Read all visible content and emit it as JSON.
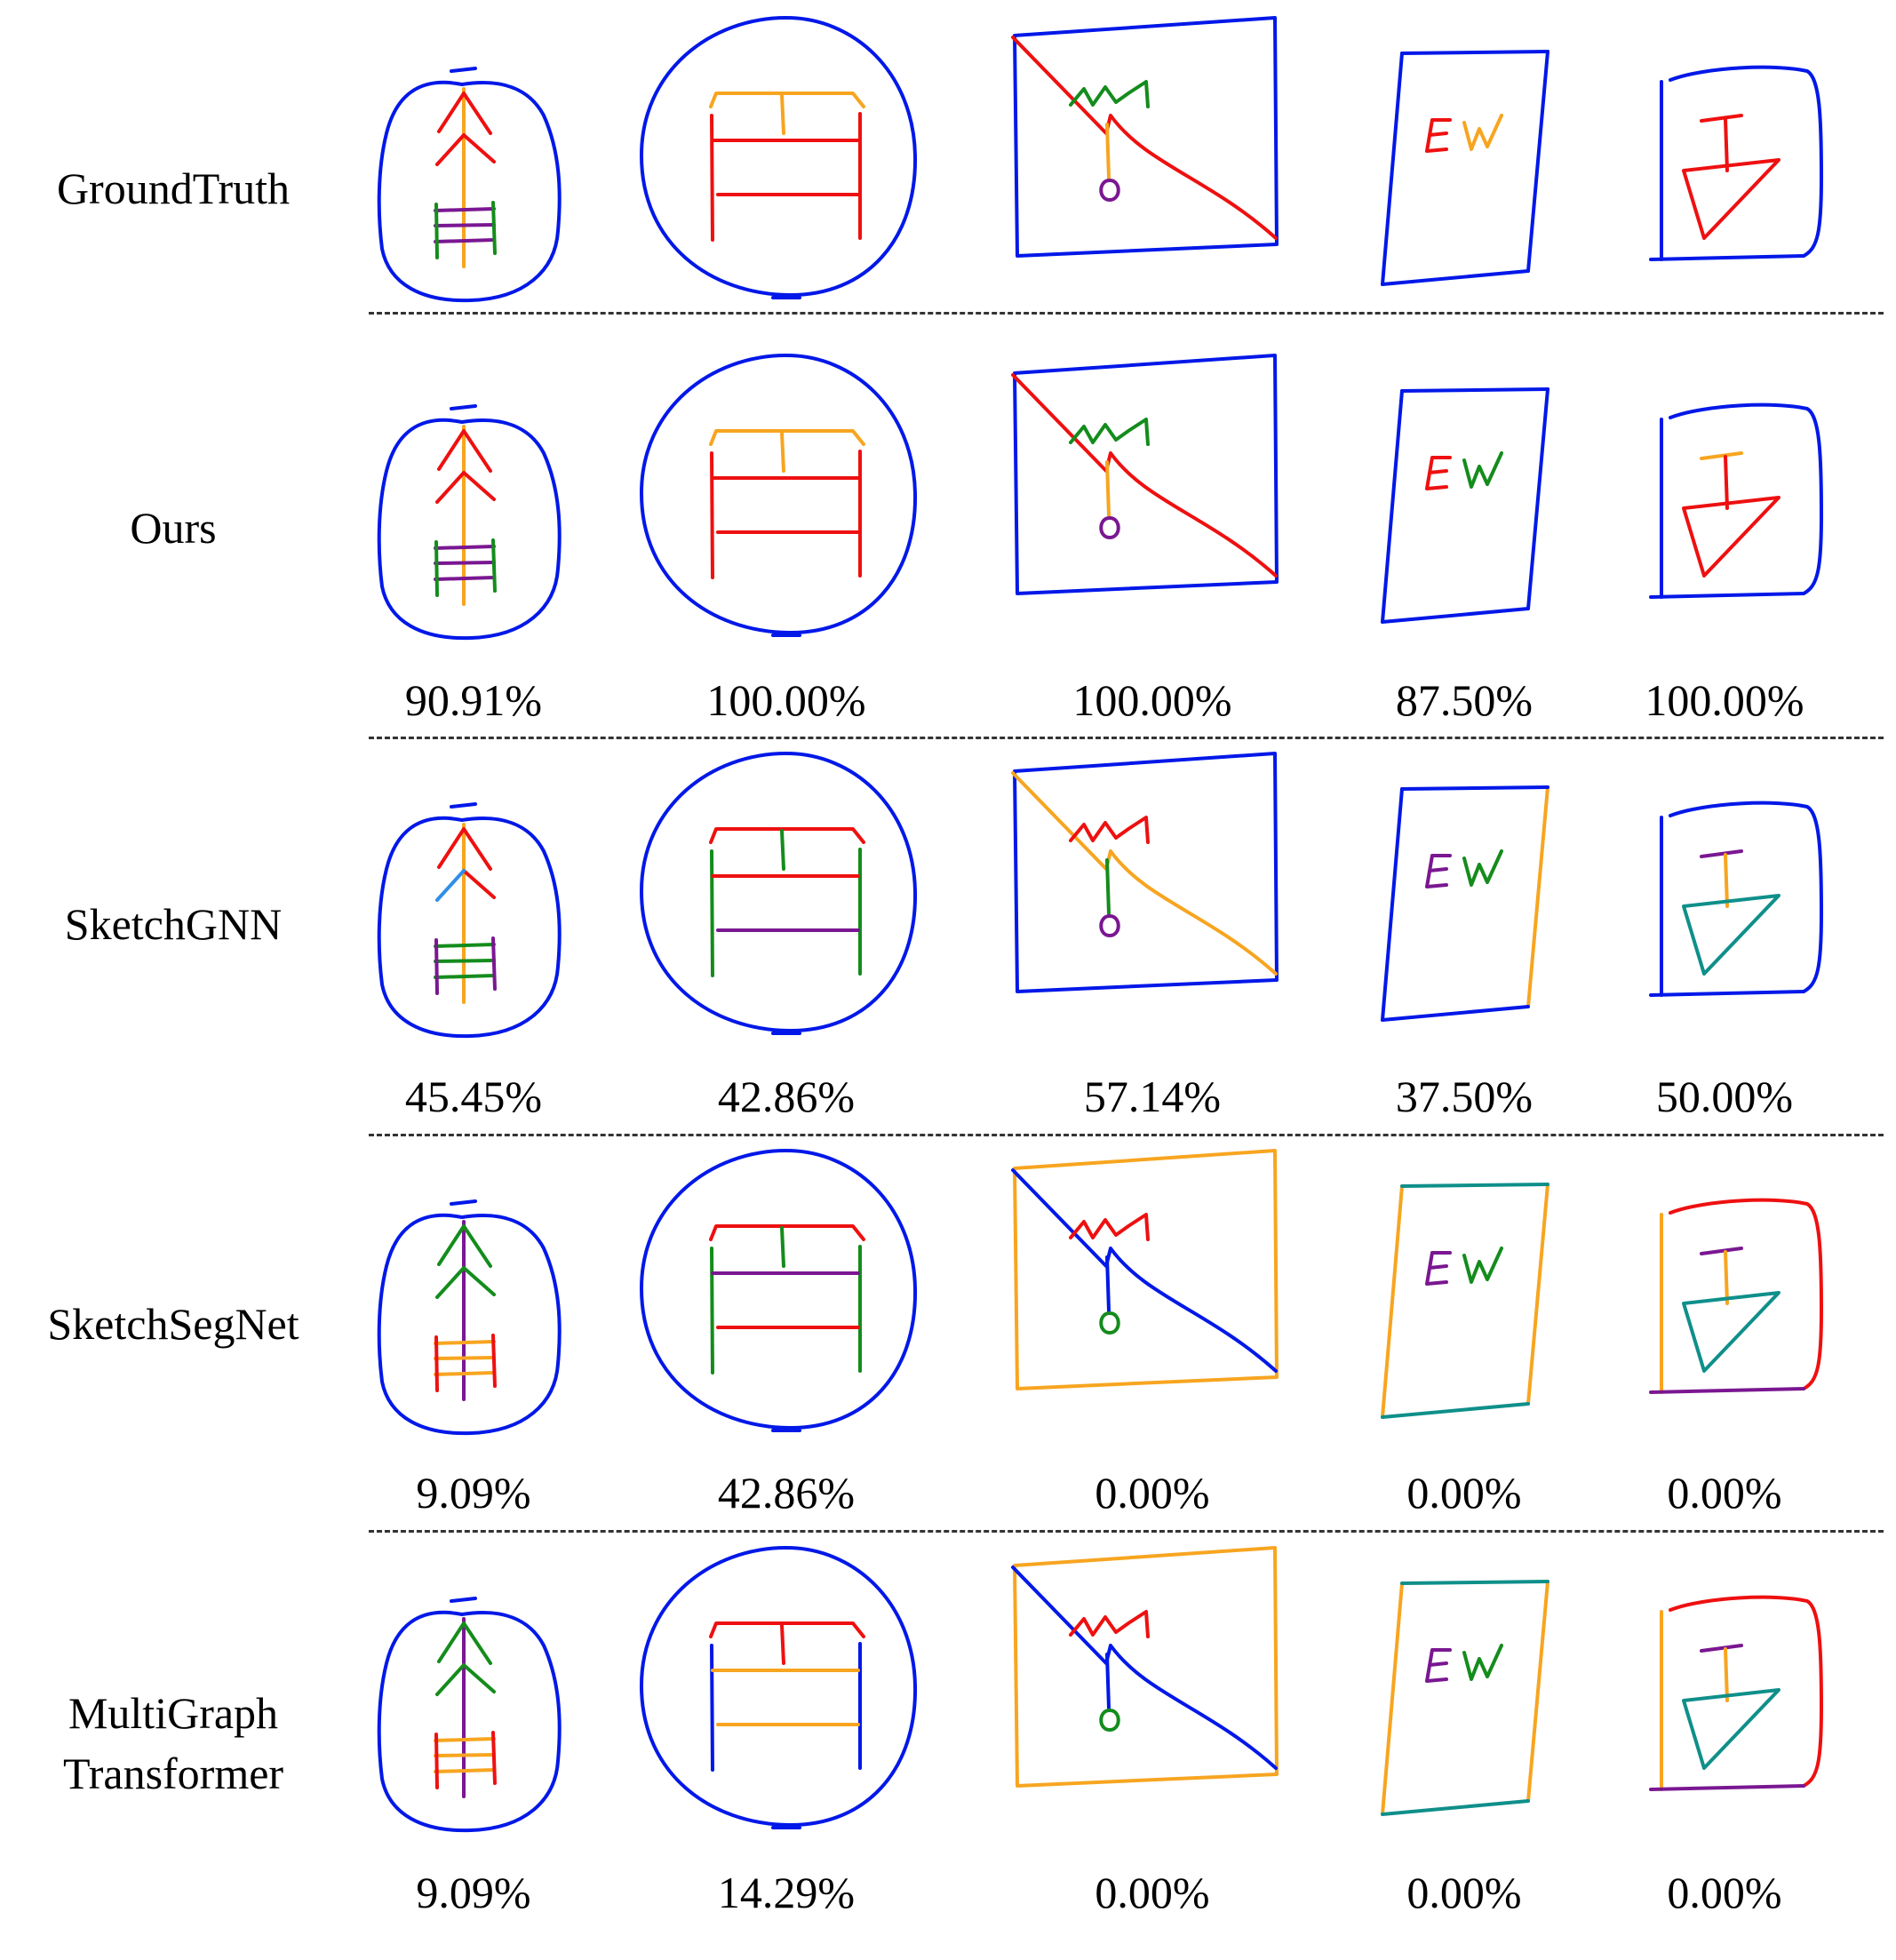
{
  "figure": {
    "palette": {
      "blue": "#0018e8",
      "red": "#ee1010",
      "orange": "#f7a520",
      "green": "#148c1c",
      "purple": "#7a1791",
      "teal": "#0f8f8a",
      "lightblue": "#2f8fe8"
    },
    "rows": [
      {
        "method": "GroundTruth",
        "scores": []
      },
      {
        "method": "Ours",
        "scores": [
          "90.91%",
          "100.00%",
          "100.00%",
          "87.50%",
          "100.00%"
        ]
      },
      {
        "method": "SketchGNN",
        "scores": [
          "45.45%",
          "42.86%",
          "57.14%",
          "37.50%",
          "50.00%"
        ]
      },
      {
        "method": "SketchSegNet",
        "scores": [
          "9.09%",
          "42.86%",
          "0.00%",
          "0.00%",
          "0.00%"
        ]
      },
      {
        "method": "MultiGraph Transformer",
        "scores": [
          "9.09%",
          "14.29%",
          "0.00%",
          "0.00%",
          "0.00%"
        ]
      }
    ],
    "sketch_colors": [
      {
        "tree_frame": "blue",
        "tree_trunk": "orange",
        "tree_branches": "red",
        "tree_branches_2": "red",
        "tree_ladder_rungs": "purple",
        "tree_ladder_sides": "green",
        "bed_circle": "blue",
        "bed_head": "orange",
        "bed_post": "orange",
        "bed_legs": "red",
        "bed_bars": "red",
        "bed_bar_low": "red",
        "rect_frame": "blue",
        "rect_diag": "red",
        "rect_wave": "green",
        "rect_stem": "orange",
        "rect_circle": "purple",
        "ew_frame": "blue",
        "ew_right": "blue",
        "ew_top": "blue",
        "ew_bottom": "blue",
        "ew_e": "red",
        "ew_w": "orange",
        "t_frame": "blue",
        "t_left": "blue",
        "t_bottom": "blue",
        "t_bar": "red",
        "t_stem": "red",
        "t_tri": "red"
      },
      {
        "tree_frame": "blue",
        "tree_trunk": "orange",
        "tree_branches": "red",
        "tree_branches_2": "red",
        "tree_ladder_rungs": "purple",
        "tree_ladder_sides": "green",
        "bed_circle": "blue",
        "bed_head": "orange",
        "bed_post": "orange",
        "bed_legs": "red",
        "bed_bars": "red",
        "bed_bar_low": "red",
        "rect_frame": "blue",
        "rect_diag": "red",
        "rect_wave": "green",
        "rect_stem": "orange",
        "rect_circle": "purple",
        "ew_frame": "blue",
        "ew_right": "blue",
        "ew_top": "blue",
        "ew_bottom": "blue",
        "ew_e": "red",
        "ew_w": "green",
        "t_frame": "blue",
        "t_left": "blue",
        "t_bottom": "blue",
        "t_bar": "orange",
        "t_stem": "red",
        "t_tri": "red"
      },
      {
        "tree_frame": "blue",
        "tree_trunk": "orange",
        "tree_branches": "red",
        "tree_branches_2": "lightblue",
        "tree_ladder_rungs": "green",
        "tree_ladder_sides": "purple",
        "bed_circle": "blue",
        "bed_head": "red",
        "bed_post": "green",
        "bed_legs": "green",
        "bed_bars": "red",
        "bed_bar_low": "purple",
        "rect_frame": "blue",
        "rect_diag": "orange",
        "rect_wave": "red",
        "rect_stem": "green",
        "rect_circle": "purple",
        "ew_frame": "blue",
        "ew_right": "orange",
        "ew_top": "blue",
        "ew_bottom": "blue",
        "ew_e": "purple",
        "ew_w": "green",
        "t_frame": "blue",
        "t_left": "blue",
        "t_bottom": "blue",
        "t_bar": "purple",
        "t_stem": "orange",
        "t_tri": "teal"
      },
      {
        "tree_frame": "blue",
        "tree_trunk": "purple",
        "tree_branches": "green",
        "tree_branches_2": "green",
        "tree_ladder_rungs": "orange",
        "tree_ladder_sides": "red",
        "bed_circle": "blue",
        "bed_head": "red",
        "bed_post": "green",
        "bed_legs": "green",
        "bed_bars": "purple",
        "bed_bar_low": "red",
        "rect_frame": "orange",
        "rect_diag": "blue",
        "rect_wave": "red",
        "rect_stem": "blue",
        "rect_circle": "green",
        "ew_frame": "orange",
        "ew_right": "orange",
        "ew_top": "teal",
        "ew_bottom": "teal",
        "ew_e": "purple",
        "ew_w": "green",
        "t_frame": "red",
        "t_left": "orange",
        "t_bottom": "purple",
        "t_bar": "purple",
        "t_stem": "orange",
        "t_tri": "teal"
      },
      {
        "tree_frame": "blue",
        "tree_trunk": "purple",
        "tree_branches": "green",
        "tree_branches_2": "green",
        "tree_ladder_rungs": "orange",
        "tree_ladder_sides": "red",
        "bed_circle": "blue",
        "bed_head": "red",
        "bed_post": "red",
        "bed_legs": "blue",
        "bed_bars": "orange",
        "bed_bar_low": "orange",
        "rect_frame": "orange",
        "rect_diag": "blue",
        "rect_wave": "red",
        "rect_stem": "blue",
        "rect_circle": "green",
        "ew_frame": "orange",
        "ew_right": "orange",
        "ew_top": "teal",
        "ew_bottom": "teal",
        "ew_e": "purple",
        "ew_w": "green",
        "t_frame": "red",
        "t_left": "orange",
        "t_bottom": "purple",
        "t_bar": "purple",
        "t_stem": "orange",
        "t_tri": "teal"
      }
    ]
  }
}
